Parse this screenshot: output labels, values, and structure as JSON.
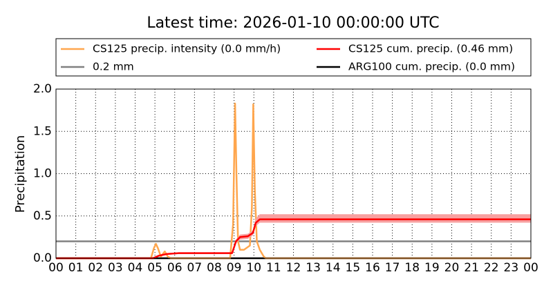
{
  "chart_data": {
    "type": "line",
    "title": "Latest time: 2026-01-10 00:00:00 UTC",
    "y_label": "Precipitation",
    "xlim": [
      0,
      24
    ],
    "xticks": [
      {
        "value": 0,
        "label": "00"
      },
      {
        "value": 1,
        "label": "01"
      },
      {
        "value": 2,
        "label": "02"
      },
      {
        "value": 3,
        "label": "03"
      },
      {
        "value": 4,
        "label": "04"
      },
      {
        "value": 5,
        "label": "05"
      },
      {
        "value": 6,
        "label": "06"
      },
      {
        "value": 7,
        "label": "07"
      },
      {
        "value": 8,
        "label": "08"
      },
      {
        "value": 9,
        "label": "09"
      },
      10,
      11,
      12,
      13,
      14,
      15,
      16,
      17,
      18,
      19,
      20,
      21,
      22,
      23,
      {
        "value": 24,
        "label": "00"
      }
    ],
    "ylim": [
      0,
      2
    ],
    "yticks": [
      {
        "value": 0,
        "label": "0.0"
      },
      0.5,
      {
        "value": 1,
        "label": "1.0"
      },
      1.5,
      {
        "value": 2,
        "label": "2.0"
      }
    ],
    "grid": true,
    "legend": "top",
    "series": [
      {
        "name": "CS125 precip. intensity (0.0 mm/h)",
        "color": "#ffa64d",
        "x": [
          0,
          4.8,
          4.95,
          5.05,
          5.15,
          5.3,
          5.5,
          5.65,
          5.8,
          8.8,
          8.95,
          9.05,
          9.12,
          9.2,
          9.3,
          9.5,
          9.8,
          9.9,
          9.97,
          10.05,
          10.15,
          10.3,
          10.5,
          10.6,
          24
        ],
        "values": [
          0,
          0,
          0.12,
          0.17,
          0.12,
          0.02,
          0.08,
          0.02,
          0,
          0,
          0.4,
          1.83,
          1.0,
          0.2,
          0.1,
          0.1,
          0.15,
          0.6,
          1.82,
          0.8,
          0.2,
          0.1,
          0.02,
          0,
          0
        ]
      },
      {
        "name": "CS125 cum. precip. (0.46 mm)",
        "color": "#ff0000",
        "band_color": "#f7a0a0",
        "x": [
          0,
          4.9,
          5.2,
          5.6,
          6.2,
          8.9,
          9.1,
          9.3,
          9.7,
          9.95,
          10.1,
          10.3,
          24
        ],
        "values": [
          0,
          0,
          0.03,
          0.05,
          0.06,
          0.06,
          0.2,
          0.25,
          0.26,
          0.3,
          0.42,
          0.46,
          0.46
        ],
        "band_lower": [
          0,
          0,
          0.02,
          0.04,
          0.05,
          0.05,
          0.18,
          0.22,
          0.23,
          0.27,
          0.38,
          0.42,
          0.42
        ],
        "band_upper": [
          0,
          0,
          0.04,
          0.06,
          0.07,
          0.07,
          0.22,
          0.28,
          0.29,
          0.33,
          0.47,
          0.52,
          0.52
        ]
      },
      {
        "name": "0.2 mm",
        "color": "#808080",
        "x": [
          0,
          24
        ],
        "values": [
          0.2,
          0.2
        ]
      },
      {
        "name": "ARG100 cum. precip. (0.0 mm)",
        "color": "#000000",
        "x": [
          0,
          24
        ],
        "values": [
          0,
          0
        ]
      }
    ]
  }
}
